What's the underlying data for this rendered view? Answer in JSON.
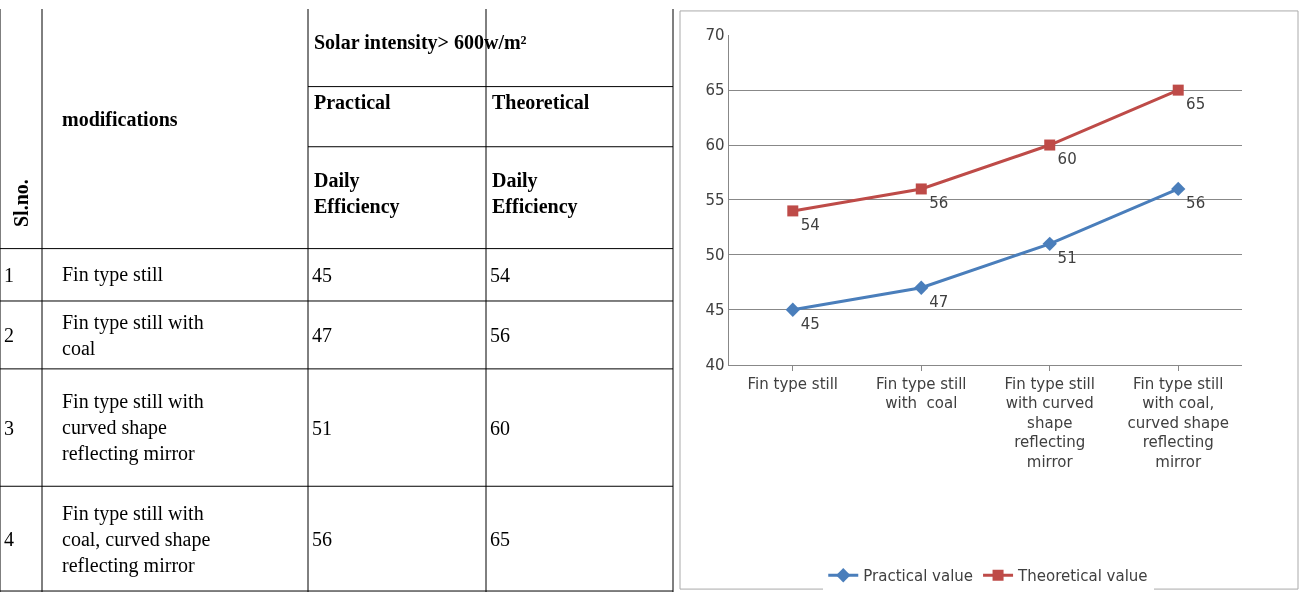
{
  "chart_data": [
    {
      "type": "other",
      "annotations": [
        "Solar intensity> 600w/m²",
        "modifications",
        "Practical",
        "Theoretical",
        "Sl.no.",
        "Daily Efficiency",
        "Daily Efficiency",
        "1",
        "Fin type still",
        "45",
        "54",
        "2",
        "Fin type still with coal",
        "47",
        "56",
        "3",
        "Fin type still with curved shape reflecting mirror",
        "51",
        "60",
        "4",
        "Fin type still with coal, curved shape reflecting mirror",
        "56",
        "65"
      ]
    },
    {
      "type": "line",
      "categories": [
        "Fin type still",
        "Fin type still with  coal",
        "Fin type still with curved shape reflecting mirror",
        "Fin type still with coal, curved shape reflecting mirror"
      ],
      "series": [
        {
          "name": "Practical value",
          "color": "#4a7ebb",
          "marker": "diamond",
          "values": [
            45,
            47,
            51,
            56
          ]
        },
        {
          "name": "Theoretical value",
          "color": "#be4b48",
          "marker": "square",
          "values": [
            54,
            56,
            60,
            65
          ]
        }
      ],
      "ylim": [
        40,
        70
      ],
      "yticks": [
        40,
        45,
        50,
        55,
        60,
        65,
        70
      ],
      "grid": "y",
      "legend": "bottom",
      "data_labels": true
    }
  ]
}
